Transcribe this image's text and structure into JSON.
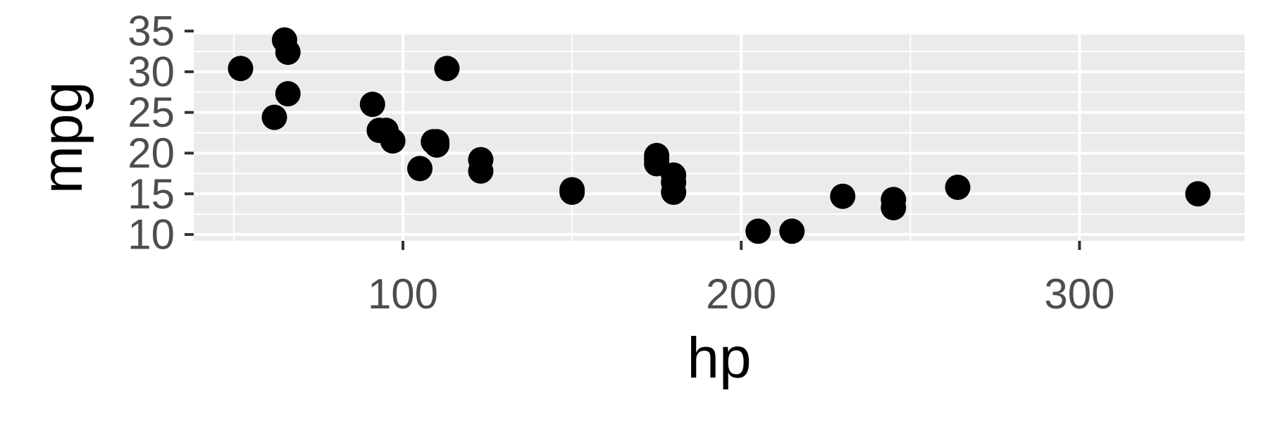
{
  "chart_data": {
    "type": "scatter",
    "title": "",
    "xlabel": "hp",
    "ylabel": "mpg",
    "xlim": [
      38.15,
      348.85
    ],
    "ylim": [
      9.225,
      34.575
    ],
    "x_ticks": [
      100,
      200,
      300
    ],
    "x_tick_labels": [
      "100",
      "200",
      "300"
    ],
    "y_ticks": [
      10,
      15,
      20,
      25,
      30,
      35
    ],
    "y_tick_labels": [
      "10",
      "15",
      "20",
      "25",
      "30",
      "35"
    ],
    "grid": true,
    "legend": "none",
    "points": [
      {
        "x": 110,
        "y": 21.0
      },
      {
        "x": 110,
        "y": 21.0
      },
      {
        "x": 93,
        "y": 22.8
      },
      {
        "x": 110,
        "y": 21.4
      },
      {
        "x": 175,
        "y": 18.7
      },
      {
        "x": 105,
        "y": 18.1
      },
      {
        "x": 245,
        "y": 14.3
      },
      {
        "x": 62,
        "y": 24.4
      },
      {
        "x": 95,
        "y": 22.8
      },
      {
        "x": 123,
        "y": 19.2
      },
      {
        "x": 123,
        "y": 17.8
      },
      {
        "x": 180,
        "y": 16.4
      },
      {
        "x": 180,
        "y": 17.3
      },
      {
        "x": 180,
        "y": 15.2
      },
      {
        "x": 205,
        "y": 10.4
      },
      {
        "x": 215,
        "y": 10.4
      },
      {
        "x": 230,
        "y": 14.7
      },
      {
        "x": 66,
        "y": 32.4
      },
      {
        "x": 52,
        "y": 30.4
      },
      {
        "x": 65,
        "y": 33.9
      },
      {
        "x": 97,
        "y": 21.5
      },
      {
        "x": 150,
        "y": 15.5
      },
      {
        "x": 150,
        "y": 15.2
      },
      {
        "x": 245,
        "y": 13.3
      },
      {
        "x": 175,
        "y": 19.2
      },
      {
        "x": 66,
        "y": 27.3
      },
      {
        "x": 91,
        "y": 26.0
      },
      {
        "x": 113,
        "y": 30.4
      },
      {
        "x": 264,
        "y": 15.8
      },
      {
        "x": 175,
        "y": 19.7
      },
      {
        "x": 335,
        "y": 15.0
      },
      {
        "x": 109,
        "y": 21.4
      }
    ],
    "colors": {
      "panel_background": "#ebebeb",
      "grid_major": "#ffffff",
      "point": "#000000",
      "tick_mark": "#333333",
      "tick_label": "#4d4d4d"
    }
  }
}
